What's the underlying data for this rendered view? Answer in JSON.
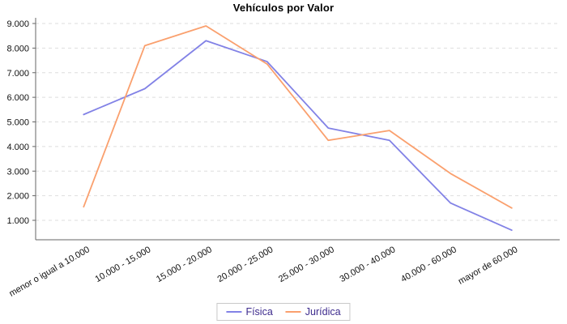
{
  "chart_data": {
    "type": "line",
    "title": "Vehículos por Valor",
    "xlabel": "",
    "ylabel": "",
    "categories": [
      "menor o igual a 10.000",
      "10.000 - 15.000",
      "15.000 - 20.000",
      "20.000 - 25.000",
      "25.000 - 30.000",
      "30.000 - 40.000",
      "40.000 - 60.000",
      "mayor de 60.000"
    ],
    "series": [
      {
        "name": "Física",
        "color": "#8282e6",
        "values": [
          5300,
          6350,
          8300,
          7450,
          4750,
          4250,
          1700,
          600
        ]
      },
      {
        "name": "Jurídica",
        "color": "#faa06e",
        "values": [
          1550,
          8100,
          8900,
          7350,
          4250,
          4650,
          2900,
          1500
        ]
      }
    ],
    "y_axis": {
      "min": 0,
      "max": 9400,
      "tick_step": 1000,
      "ticks": [
        {
          "value": 1000,
          "label": "1.000"
        },
        {
          "value": 2000,
          "label": "2.000"
        },
        {
          "value": 3000,
          "label": "3.000"
        },
        {
          "value": 4000,
          "label": "4.000"
        },
        {
          "value": 5000,
          "label": "5.000"
        },
        {
          "value": 6000,
          "label": "6.000"
        },
        {
          "value": 7000,
          "label": "7.000"
        },
        {
          "value": 8000,
          "label": "8.000"
        },
        {
          "value": 9000,
          "label": "9.000"
        }
      ]
    },
    "grid": "horizontal-dashed",
    "legend_position": "bottom",
    "x_label_rotation_deg": -30,
    "colors": {
      "grid": "#dedede",
      "axis": "#666666",
      "tick_text": "#111111",
      "category_text": "#111111",
      "title_text": "#000000",
      "legend_text": "#3d2b8d",
      "legend_border": "#c9c9c9",
      "background": "#ffffff"
    }
  }
}
